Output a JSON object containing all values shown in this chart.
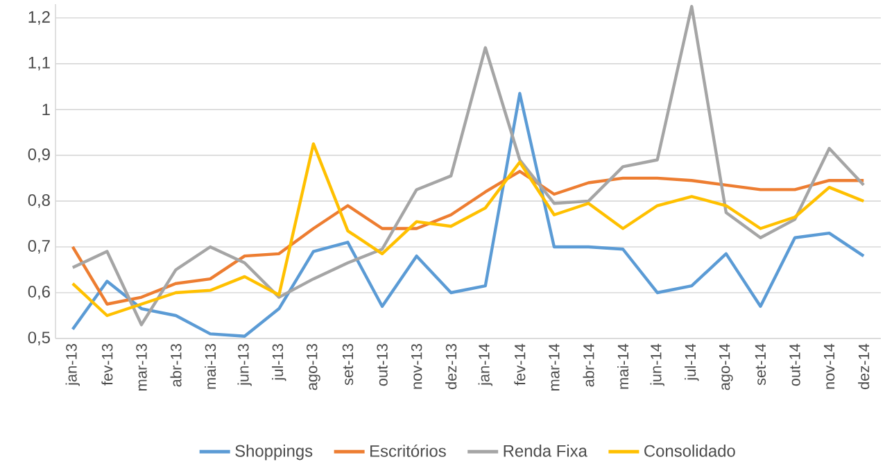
{
  "chart_data": {
    "type": "line",
    "categories": [
      "jan-13",
      "fev-13",
      "mar-13",
      "abr-13",
      "mai-13",
      "jun-13",
      "jul-13",
      "ago-13",
      "set-13",
      "out-13",
      "nov-13",
      "dez-13",
      "jan-14",
      "fev-14",
      "mar-14",
      "abr-14",
      "mai-14",
      "jun-14",
      "jul-14",
      "ago-14",
      "set-14",
      "out-14",
      "nov-14",
      "dez-14"
    ],
    "series": [
      {
        "name": "Shoppings",
        "color": "#5b9bd5",
        "values": [
          0.52,
          0.625,
          0.565,
          0.55,
          0.51,
          0.505,
          0.565,
          0.69,
          0.71,
          0.57,
          0.68,
          0.6,
          0.615,
          1.035,
          0.7,
          0.7,
          0.695,
          0.6,
          0.615,
          0.685,
          0.57,
          0.72,
          0.73,
          0.68
        ]
      },
      {
        "name": "Escritórios",
        "color": "#ed7d31",
        "values": [
          0.7,
          0.575,
          0.59,
          0.62,
          0.63,
          0.68,
          0.685,
          0.74,
          0.79,
          0.74,
          0.74,
          0.77,
          0.82,
          0.865,
          0.815,
          0.84,
          0.85,
          0.85,
          0.845,
          0.835,
          0.825,
          0.825,
          0.845,
          0.845
        ]
      },
      {
        "name": "Renda Fixa",
        "color": "#a5a5a5",
        "values": [
          0.655,
          0.69,
          0.53,
          0.65,
          0.7,
          0.665,
          0.59,
          0.63,
          0.665,
          0.695,
          0.825,
          0.855,
          1.135,
          0.89,
          0.795,
          0.8,
          0.875,
          0.89,
          1.225,
          0.775,
          0.72,
          0.76,
          0.915,
          0.835
        ]
      },
      {
        "name": "Consolidado",
        "color": "#ffc000",
        "values": [
          0.62,
          0.55,
          0.575,
          0.6,
          0.605,
          0.635,
          0.595,
          0.925,
          0.735,
          0.685,
          0.755,
          0.745,
          0.785,
          0.885,
          0.77,
          0.795,
          0.74,
          0.79,
          0.81,
          0.79,
          0.74,
          0.765,
          0.83,
          0.8
        ]
      }
    ],
    "ylim": [
      0.5,
      1.23
    ],
    "yticks": [
      {
        "value": 0.5,
        "label": "0,5"
      },
      {
        "value": 0.6,
        "label": "0,6"
      },
      {
        "value": 0.7,
        "label": "0,7"
      },
      {
        "value": 0.8,
        "label": "0,8"
      },
      {
        "value": 0.9,
        "label": "0,9"
      },
      1,
      {
        "value": 1.1,
        "label": "1,1"
      },
      {
        "value": 1.2,
        "label": "1,2"
      }
    ],
    "grid": "y",
    "legend": "bottom",
    "marker": "none",
    "line_style": "solid"
  }
}
